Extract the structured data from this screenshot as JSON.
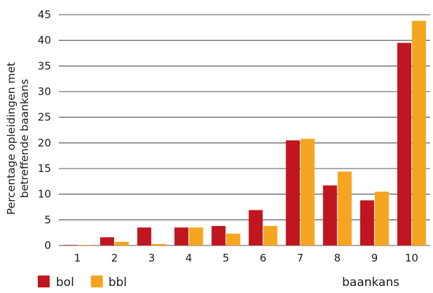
{
  "chart_data": {
    "type": "bar",
    "categories": [
      "1",
      "2",
      "3",
      "4",
      "5",
      "6",
      "7",
      "8",
      "9",
      "10"
    ],
    "series": [
      {
        "name": "bol",
        "color": "#c0161f",
        "values": [
          0.1,
          1.6,
          3.5,
          3.5,
          3.8,
          6.9,
          20.5,
          11.7,
          8.8,
          39.5
        ]
      },
      {
        "name": "bbl",
        "color": "#f5a51f",
        "values": [
          0.1,
          0.7,
          0.3,
          3.5,
          2.3,
          3.8,
          20.8,
          14.4,
          10.5,
          43.8
        ]
      }
    ],
    "title": "",
    "xlabel": "baankans",
    "ylabel_lines": [
      "Percentage opleidingen met",
      "betreffende baankans"
    ],
    "ylim": [
      0,
      45
    ],
    "yticks": [
      "0",
      "5",
      "10",
      "15",
      "20",
      "25",
      "30",
      "35",
      "40",
      "45"
    ],
    "grid": true,
    "legend_position": "bottom-left",
    "grid_color": "#1a1a1a"
  }
}
